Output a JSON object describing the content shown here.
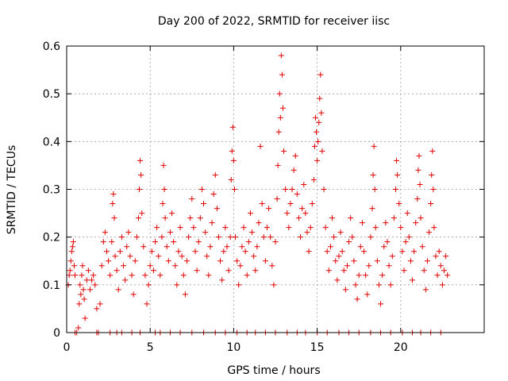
{
  "chart_data": {
    "type": "scatter",
    "title": "Day 200 of 2022, SRMTID for receiver iisc",
    "xlabel": "GPS time / hours",
    "ylabel": "SRMTID / TECUs",
    "xlim": [
      0,
      25
    ],
    "ylim": [
      0,
      0.6
    ],
    "x_ticks": [
      0,
      5,
      10,
      15,
      20
    ],
    "x_tick_labels": [
      "0",
      "5",
      "10",
      "15",
      "20"
    ],
    "y_ticks": [
      0,
      0.1,
      0.2,
      0.3,
      0.4,
      0.5,
      0.6
    ],
    "y_tick_labels": [
      "0",
      "0.1",
      "0.2",
      "0.3",
      "0.4",
      "0.5",
      "0.6"
    ],
    "grid": true,
    "marker": "plus",
    "color": "#e00000",
    "series": [
      {
        "name": "SRMTID",
        "points": [
          [
            0.1,
            0.1
          ],
          [
            0.15,
            0.12
          ],
          [
            0.2,
            0.13
          ],
          [
            0.25,
            0.15
          ],
          [
            0.3,
            0.17
          ],
          [
            0.35,
            0.18
          ],
          [
            0.4,
            0.19
          ],
          [
            0.45,
            0.14
          ],
          [
            0.5,
            0.12
          ],
          [
            0.6,
            0.0
          ],
          [
            0.7,
            0.01
          ],
          [
            0.75,
            0.06
          ],
          [
            0.8,
            0.1
          ],
          [
            0.85,
            0.08
          ],
          [
            0.9,
            0.12
          ],
          [
            0.95,
            0.14
          ],
          [
            1.0,
            0.09
          ],
          [
            1.05,
            0.07
          ],
          [
            1.1,
            0.03
          ],
          [
            1.2,
            0.11
          ],
          [
            1.3,
            0.13
          ],
          [
            1.4,
            0.09
          ],
          [
            1.5,
            0.11
          ],
          [
            1.6,
            0.12
          ],
          [
            1.7,
            0.1
          ],
          [
            1.8,
            0.05
          ],
          [
            1.9,
            0.0
          ],
          [
            2.0,
            0.06
          ],
          [
            2.1,
            0.14
          ],
          [
            2.2,
            0.19
          ],
          [
            2.3,
            0.21
          ],
          [
            2.4,
            0.17
          ],
          [
            2.5,
            0.15
          ],
          [
            2.6,
            0.12
          ],
          [
            2.7,
            0.19
          ],
          [
            2.75,
            0.27
          ],
          [
            2.8,
            0.29
          ],
          [
            2.85,
            0.24
          ],
          [
            2.9,
            0.16
          ],
          [
            3.0,
            0.13
          ],
          [
            3.1,
            0.09
          ],
          [
            3.2,
            0.17
          ],
          [
            3.3,
            0.2
          ],
          [
            3.4,
            0.14
          ],
          [
            3.5,
            0.11
          ],
          [
            3.6,
            0.18
          ],
          [
            3.7,
            0.21
          ],
          [
            3.8,
            0.16
          ],
          [
            3.9,
            0.12
          ],
          [
            4.0,
            0.08
          ],
          [
            4.1,
            0.15
          ],
          [
            4.2,
            0.2
          ],
          [
            4.3,
            0.24
          ],
          [
            4.35,
            0.3
          ],
          [
            4.4,
            0.36
          ],
          [
            4.45,
            0.33
          ],
          [
            4.5,
            0.25
          ],
          [
            4.6,
            0.18
          ],
          [
            4.7,
            0.12
          ],
          [
            4.8,
            0.06
          ],
          [
            4.9,
            0.1
          ],
          [
            5.0,
            0.14
          ],
          [
            5.1,
            0.17
          ],
          [
            5.2,
            0.13
          ],
          [
            5.3,
            0.19
          ],
          [
            5.4,
            0.22
          ],
          [
            5.5,
            0.16
          ],
          [
            5.6,
            0.12
          ],
          [
            5.7,
            0.2
          ],
          [
            5.75,
            0.27
          ],
          [
            5.8,
            0.35
          ],
          [
            5.85,
            0.3
          ],
          [
            5.9,
            0.24
          ],
          [
            6.0,
            0.18
          ],
          [
            6.1,
            0.15
          ],
          [
            6.2,
            0.21
          ],
          [
            6.3,
            0.25
          ],
          [
            6.4,
            0.19
          ],
          [
            6.5,
            0.14
          ],
          [
            6.6,
            0.1
          ],
          [
            6.7,
            0.17
          ],
          [
            6.8,
            0.22
          ],
          [
            6.9,
            0.16
          ],
          [
            7.0,
            0.12
          ],
          [
            7.1,
            0.08
          ],
          [
            7.2,
            0.15
          ],
          [
            7.3,
            0.2
          ],
          [
            7.4,
            0.24
          ],
          [
            7.5,
            0.28
          ],
          [
            7.6,
            0.22
          ],
          [
            7.7,
            0.17
          ],
          [
            7.8,
            0.13
          ],
          [
            7.9,
            0.19
          ],
          [
            8.0,
            0.24
          ],
          [
            8.1,
            0.3
          ],
          [
            8.2,
            0.27
          ],
          [
            8.3,
            0.21
          ],
          [
            8.4,
            0.16
          ],
          [
            8.5,
            0.12
          ],
          [
            8.6,
            0.18
          ],
          [
            8.7,
            0.23
          ],
          [
            8.8,
            0.29
          ],
          [
            8.9,
            0.33
          ],
          [
            9.0,
            0.26
          ],
          [
            9.1,
            0.2
          ],
          [
            9.2,
            0.15
          ],
          [
            9.3,
            0.11
          ],
          [
            9.4,
            0.17
          ],
          [
            9.5,
            0.22
          ],
          [
            9.6,
            0.18
          ],
          [
            9.7,
            0.13
          ],
          [
            9.8,
            0.2
          ],
          [
            9.85,
            0.32
          ],
          [
            9.9,
            0.38
          ],
          [
            9.95,
            0.43
          ],
          [
            10.0,
            0.36
          ],
          [
            10.05,
            0.3
          ],
          [
            10.1,
            0.2
          ],
          [
            10.2,
            0.15
          ],
          [
            10.3,
            0.1
          ],
          [
            10.4,
            0.14
          ],
          [
            10.5,
            0.18
          ],
          [
            10.6,
            0.22
          ],
          [
            10.7,
            0.17
          ],
          [
            10.8,
            0.12
          ],
          [
            10.9,
            0.19
          ],
          [
            11.0,
            0.25
          ],
          [
            11.1,
            0.21
          ],
          [
            11.2,
            0.16
          ],
          [
            11.3,
            0.13
          ],
          [
            11.4,
            0.18
          ],
          [
            11.5,
            0.23
          ],
          [
            11.6,
            0.39
          ],
          [
            11.7,
            0.27
          ],
          [
            11.8,
            0.2
          ],
          [
            11.9,
            0.15
          ],
          [
            12.0,
            0.22
          ],
          [
            12.1,
            0.26
          ],
          [
            12.2,
            0.2
          ],
          [
            12.3,
            0.14
          ],
          [
            12.4,
            0.1
          ],
          [
            12.5,
            0.19
          ],
          [
            12.6,
            0.28
          ],
          [
            12.65,
            0.35
          ],
          [
            12.7,
            0.42
          ],
          [
            12.75,
            0.5
          ],
          [
            12.8,
            0.45
          ],
          [
            12.85,
            0.58
          ],
          [
            12.9,
            0.54
          ],
          [
            12.95,
            0.47
          ],
          [
            13.0,
            0.38
          ],
          [
            13.1,
            0.3
          ],
          [
            13.2,
            0.25
          ],
          [
            13.3,
            0.22
          ],
          [
            13.4,
            0.27
          ],
          [
            13.5,
            0.3
          ],
          [
            13.6,
            0.34
          ],
          [
            13.7,
            0.37
          ],
          [
            13.8,
            0.29
          ],
          [
            13.9,
            0.24
          ],
          [
            14.0,
            0.2
          ],
          [
            14.1,
            0.26
          ],
          [
            14.2,
            0.31
          ],
          [
            14.3,
            0.25
          ],
          [
            14.4,
            0.21
          ],
          [
            14.5,
            0.17
          ],
          [
            14.6,
            0.22
          ],
          [
            14.7,
            0.27
          ],
          [
            14.8,
            0.32
          ],
          [
            14.85,
            0.39
          ],
          [
            14.9,
            0.45
          ],
          [
            14.95,
            0.42
          ],
          [
            15.0,
            0.36
          ],
          [
            15.05,
            0.4
          ],
          [
            15.1,
            0.44
          ],
          [
            15.15,
            0.49
          ],
          [
            15.2,
            0.54
          ],
          [
            15.25,
            0.46
          ],
          [
            15.3,
            0.38
          ],
          [
            15.4,
            0.3
          ],
          [
            15.5,
            0.22
          ],
          [
            15.6,
            0.17
          ],
          [
            15.7,
            0.13
          ],
          [
            15.8,
            0.18
          ],
          [
            15.9,
            0.24
          ],
          [
            16.0,
            0.2
          ],
          [
            16.1,
            0.15
          ],
          [
            16.2,
            0.11
          ],
          [
            16.3,
            0.16
          ],
          [
            16.4,
            0.21
          ],
          [
            16.5,
            0.17
          ],
          [
            16.6,
            0.13
          ],
          [
            16.7,
            0.09
          ],
          [
            16.8,
            0.14
          ],
          [
            16.9,
            0.19
          ],
          [
            17.0,
            0.24
          ],
          [
            17.1,
            0.2
          ],
          [
            17.2,
            0.15
          ],
          [
            17.3,
            0.1
          ],
          [
            17.4,
            0.07
          ],
          [
            17.5,
            0.12
          ],
          [
            17.6,
            0.18
          ],
          [
            17.7,
            0.23
          ],
          [
            17.8,
            0.17
          ],
          [
            17.9,
            0.12
          ],
          [
            18.0,
            0.08
          ],
          [
            18.1,
            0.14
          ],
          [
            18.2,
            0.2
          ],
          [
            18.3,
            0.26
          ],
          [
            18.35,
            0.33
          ],
          [
            18.4,
            0.39
          ],
          [
            18.45,
            0.3
          ],
          [
            18.5,
            0.22
          ],
          [
            18.6,
            0.15
          ],
          [
            18.7,
            0.1
          ],
          [
            18.8,
            0.06
          ],
          [
            18.9,
            0.12
          ],
          [
            19.0,
            0.18
          ],
          [
            19.1,
            0.23
          ],
          [
            19.2,
            0.19
          ],
          [
            19.3,
            0.14
          ],
          [
            19.4,
            0.1
          ],
          [
            19.5,
            0.16
          ],
          [
            19.6,
            0.24
          ],
          [
            19.7,
            0.3
          ],
          [
            19.75,
            0.36
          ],
          [
            19.8,
            0.33
          ],
          [
            19.9,
            0.27
          ],
          [
            20.0,
            0.22
          ],
          [
            20.1,
            0.17
          ],
          [
            20.2,
            0.13
          ],
          [
            20.3,
            0.19
          ],
          [
            20.4,
            0.25
          ],
          [
            20.5,
            0.2
          ],
          [
            20.6,
            0.15
          ],
          [
            20.7,
            0.11
          ],
          [
            20.8,
            0.17
          ],
          [
            20.9,
            0.23
          ],
          [
            21.0,
            0.28
          ],
          [
            21.05,
            0.34
          ],
          [
            21.1,
            0.37
          ],
          [
            21.15,
            0.31
          ],
          [
            21.2,
            0.24
          ],
          [
            21.3,
            0.18
          ],
          [
            21.4,
            0.13
          ],
          [
            21.5,
            0.09
          ],
          [
            21.6,
            0.15
          ],
          [
            21.7,
            0.21
          ],
          [
            21.8,
            0.27
          ],
          [
            21.85,
            0.33
          ],
          [
            21.9,
            0.38
          ],
          [
            21.95,
            0.3
          ],
          [
            22.0,
            0.22
          ],
          [
            22.1,
            0.16
          ],
          [
            22.2,
            0.12
          ],
          [
            22.3,
            0.17
          ],
          [
            22.4,
            0.14
          ],
          [
            22.5,
            0.1
          ],
          [
            22.6,
            0.13
          ],
          [
            22.7,
            0.16
          ],
          [
            22.8,
            0.12
          ]
        ]
      }
    ],
    "zero_points_x": [
      0.5,
      1.8,
      2.6,
      3.0,
      3.3,
      3.9,
      4.4,
      5.3,
      5.6,
      6.2,
      6.8,
      7.5,
      8.2,
      8.9,
      9.5,
      10.2,
      10.8,
      11.3,
      11.9,
      12.5,
      13.2,
      13.8,
      14.3,
      15.0,
      15.6,
      16.3,
      16.9,
      17.5,
      18.2,
      18.8,
      19.4,
      20.1,
      20.7,
      21.2,
      21.8,
      22.4
    ]
  }
}
